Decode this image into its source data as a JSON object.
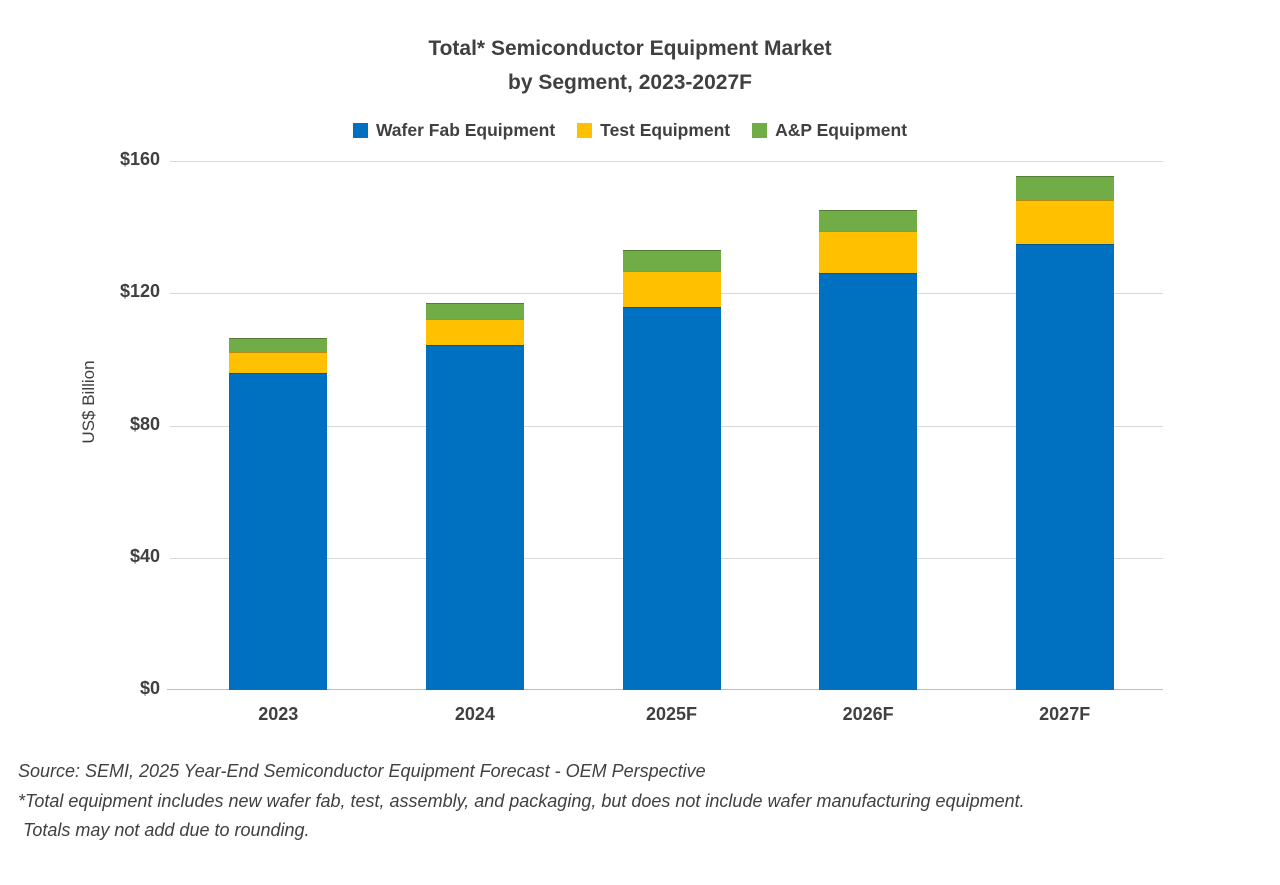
{
  "title": {
    "line1": "Total* Semiconductor Equipment Market",
    "line2": "by Segment, 2023-2027F"
  },
  "chart_data": {
    "type": "bar",
    "stacked": true,
    "title": "Total* Semiconductor Equipment Market by Segment, 2023-2027F",
    "categories": [
      "2023",
      "2024",
      "2025F",
      "2026F",
      "2027F"
    ],
    "series": [
      {
        "name": "Wafer Fab Equipment",
        "color": "#0071C0",
        "values": [
          96.0,
          104.3,
          116.0,
          126.0,
          135.0
        ]
      },
      {
        "name": "Test Equipment",
        "color": "#FFC000",
        "values": [
          6.2,
          7.8,
          10.8,
          12.7,
          13.3
        ]
      },
      {
        "name": "A&P Equipment",
        "color": "#70AD47",
        "values": [
          4.2,
          4.9,
          6.3,
          6.4,
          7.2
        ]
      }
    ],
    "totals_approx": [
      106.4,
      117.0,
      133.1,
      145.1,
      155.5
    ],
    "xlabel": "",
    "ylabel": "US$ Billion",
    "ylim": [
      0,
      160
    ],
    "yticks": [
      {
        "value": 0,
        "label": "$0"
      },
      {
        "value": 40,
        "label": "$40"
      },
      {
        "value": 80,
        "label": "$80"
      },
      {
        "value": 120,
        "label": "$120"
      },
      {
        "value": 160,
        "label": "$160"
      }
    ],
    "grid": true,
    "legend_position": "top"
  },
  "colors": {
    "text": "#404040",
    "gridline": "#D9D9D9",
    "axis_line": "#BFBFBF",
    "background": "#FFFFFF"
  },
  "footer": {
    "line1": "Source: SEMI, 2025 Year-End Semiconductor Equipment Forecast - OEM Perspective",
    "line2": "*Total equipment includes new wafer fab, test, assembly, and packaging, but does not include wafer manufacturing equipment.",
    "line3": "Totals may not add due to rounding."
  }
}
